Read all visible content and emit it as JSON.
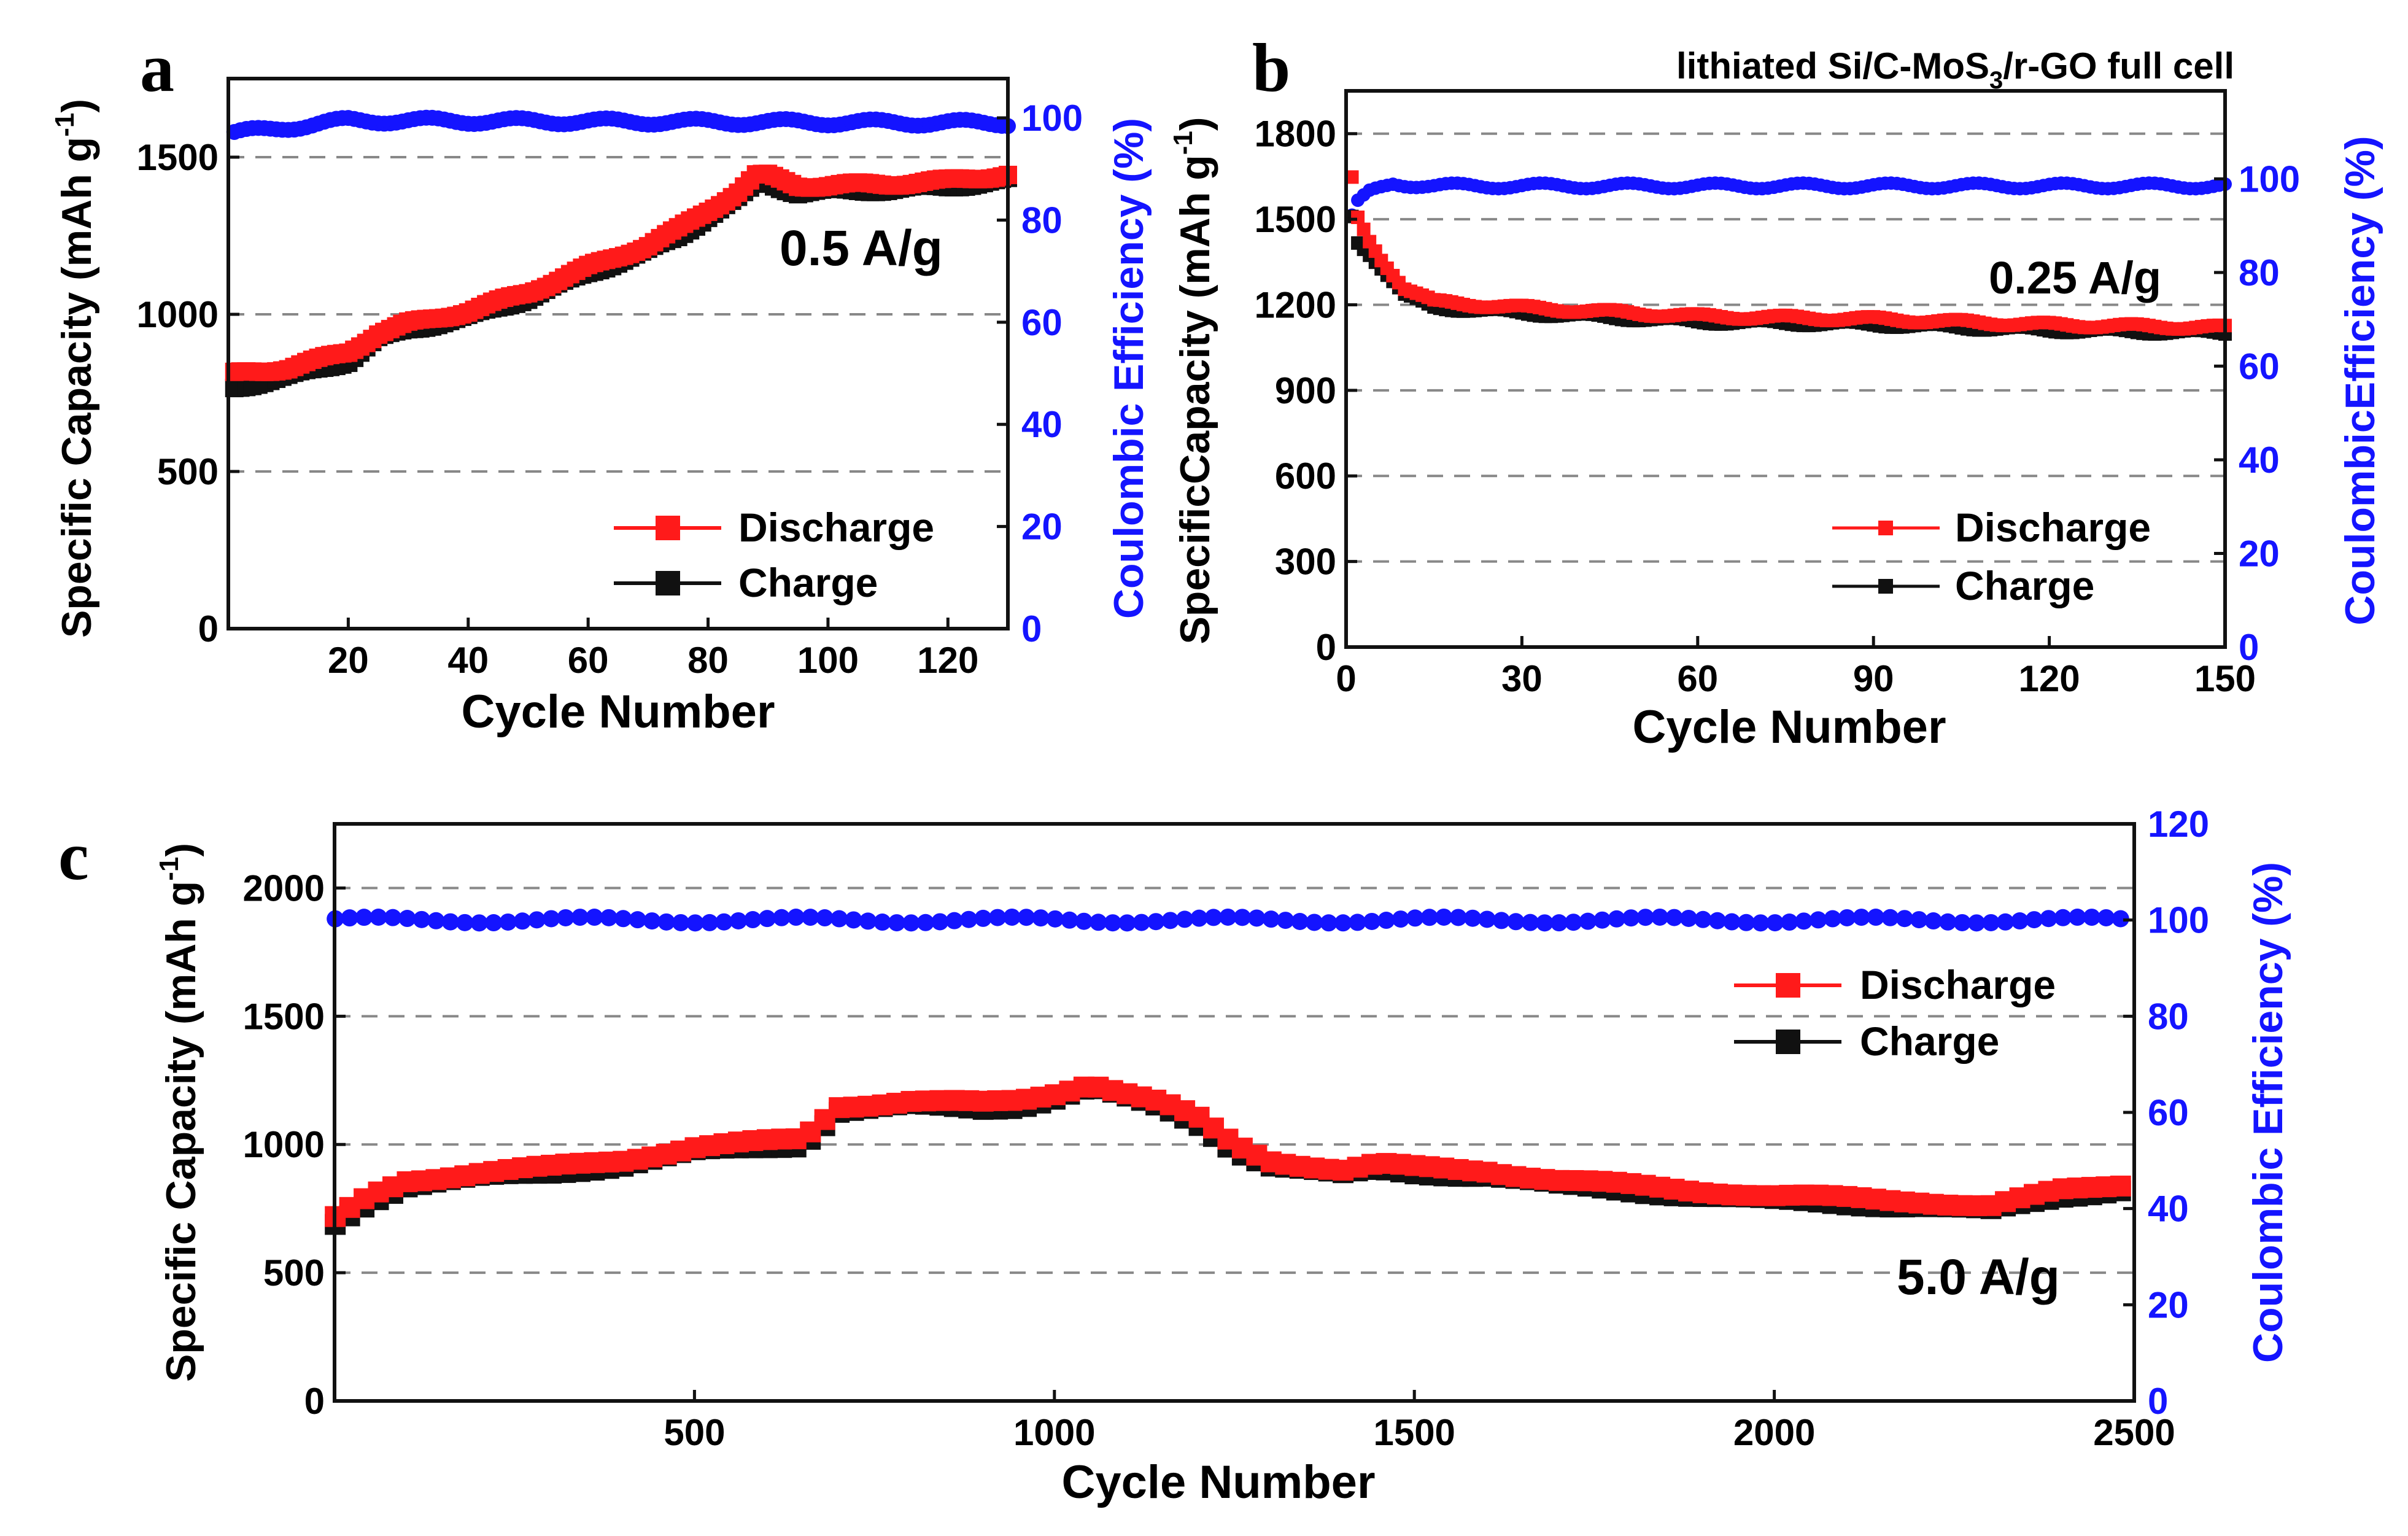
{
  "colors": {
    "discharge": "#ff1a1a",
    "charge": "#111111",
    "efficiency": "#1414ff",
    "axis": "#111111",
    "grid": "#888888"
  },
  "chart_data": [
    {
      "id": "a",
      "panel_label": "a",
      "type": "scatter",
      "title": "",
      "annotation": "0.5 A/g",
      "xlabel": "Cycle Number",
      "ylabel": "Specific Capacity (mAh g",
      "ylabel_sup": "-1",
      "ylabel_end": ")",
      "y2label": "Coulombic Efficiency (%)",
      "xlim": [
        0,
        130
      ],
      "ylim": [
        0,
        1750
      ],
      "y2lim": [
        0,
        107.7
      ],
      "xticks": [
        20,
        40,
        60,
        80,
        100,
        120
      ],
      "xtick_labels": [
        "20",
        "40",
        "60",
        "80",
        "100",
        "120"
      ],
      "yticks": [
        0,
        500,
        1000,
        1500
      ],
      "ytick_labels": [
        "0",
        "500",
        "1000",
        "1500"
      ],
      "y2ticks": [
        0,
        20,
        40,
        60,
        80,
        100
      ],
      "y2tick_labels": [
        "0",
        "20",
        "40",
        "60",
        "80",
        "100"
      ],
      "gridlines_y": [
        500,
        1000,
        1500
      ],
      "legend": {
        "position": "lower-right",
        "entries": [
          "Discharge",
          "Charge"
        ]
      },
      "series": [
        {
          "name": "Discharge",
          "axis": "left",
          "x": [
            1,
            10,
            20,
            25,
            30,
            40,
            50,
            60,
            70,
            75,
            80,
            85,
            88,
            90,
            95,
            100,
            110,
            120,
            130
          ],
          "values": [
            810,
            830,
            880,
            940,
            970,
            1010,
            1070,
            1150,
            1220,
            1270,
            1330,
            1390,
            1440,
            1440,
            1410,
            1410,
            1415,
            1425,
            1445
          ]
        },
        {
          "name": "Charge",
          "axis": "left",
          "x": [
            1,
            10,
            20,
            25,
            30,
            40,
            50,
            60,
            70,
            75,
            80,
            85,
            88,
            90,
            95,
            100,
            110,
            120,
            130
          ],
          "values": [
            775,
            810,
            860,
            930,
            960,
            1000,
            1060,
            1140,
            1210,
            1255,
            1320,
            1375,
            1420,
            1425,
            1395,
            1400,
            1405,
            1415,
            1435
          ]
        },
        {
          "name": "Coulombic Efficiency",
          "axis": "right",
          "x": [
            1,
            20,
            130
          ],
          "values": [
            97,
            99.5,
            99
          ]
        }
      ]
    },
    {
      "id": "b",
      "panel_label": "b",
      "type": "scatter",
      "title": "lithiated Si/C-MoS",
      "title_sub": "3",
      "title_end": "/r-GO full cell",
      "annotation": "0.25 A/g",
      "xlabel": "Cycle Number",
      "ylabel": "SpecificCapacity (mAh g",
      "ylabel_sup": "-1",
      "ylabel_end": ")",
      "y2label": "CoulombicEfficiency (%)",
      "xlim": [
        0,
        150
      ],
      "ylim": [
        0,
        1950
      ],
      "y2lim": [
        0,
        118.8
      ],
      "xticks": [
        0,
        30,
        60,
        90,
        120,
        150
      ],
      "xtick_labels": [
        "0",
        "30",
        "60",
        "90",
        "120",
        "150"
      ],
      "yticks": [
        0,
        300,
        600,
        900,
        1200,
        1500,
        1800
      ],
      "ytick_labels": [
        "0",
        "300",
        "600",
        "900",
        "1200",
        "1500",
        "1800"
      ],
      "y2ticks": [
        0,
        20,
        40,
        60,
        80,
        100
      ],
      "y2tick_labels": [
        "0",
        "20",
        "40",
        "60",
        "80",
        "100"
      ],
      "gridlines_y": [
        300,
        600,
        900,
        1200,
        1500,
        1800
      ],
      "legend": {
        "position": "lower-right",
        "entries": [
          "Discharge",
          "Charge"
        ]
      },
      "series": [
        {
          "name": "Discharge",
          "axis": "left",
          "x": [
            1,
            2,
            4,
            6,
            10,
            15,
            30,
            40,
            60,
            90,
            120,
            150
          ],
          "values": [
            1640,
            1500,
            1420,
            1360,
            1260,
            1210,
            1190,
            1180,
            1160,
            1150,
            1130,
            1120
          ]
        },
        {
          "name": "Charge",
          "axis": "left",
          "x": [
            1,
            2,
            4,
            6,
            10,
            15,
            30,
            40,
            60,
            90,
            120,
            150
          ],
          "values": [
            1520,
            1430,
            1390,
            1340,
            1240,
            1200,
            1180,
            1170,
            1150,
            1140,
            1120,
            1110
          ]
        },
        {
          "name": "Coulombic Efficiency",
          "axis": "right",
          "x": [
            1,
            2,
            4,
            8,
            15,
            150
          ],
          "values": [
            92,
            95,
            97,
            99,
            98.5,
            98.5
          ]
        }
      ]
    },
    {
      "id": "c",
      "panel_label": "c",
      "type": "scatter",
      "title": "",
      "annotation": "5.0 A/g",
      "xlabel": "Cycle Number",
      "ylabel": "Specific Capacity (mAh g",
      "ylabel_sup": "-1",
      "ylabel_end": ")",
      "y2label": "Coulombic Efficiency (%)",
      "xlim": [
        0,
        2500
      ],
      "ylim": [
        0,
        2250
      ],
      "y2lim": [
        0,
        120
      ],
      "xticks": [
        500,
        1000,
        1500,
        2000,
        2500
      ],
      "xtick_labels": [
        "500",
        "1000",
        "1500",
        "2000",
        "2500"
      ],
      "yticks": [
        0,
        500,
        1000,
        1500,
        2000
      ],
      "ytick_labels": [
        "0",
        "500",
        "1000",
        "1500",
        "2000"
      ],
      "y2ticks": [
        0,
        20,
        40,
        60,
        80,
        100,
        120
      ],
      "y2tick_labels": [
        "0",
        "20",
        "40",
        "60",
        "80",
        "100",
        "120"
      ],
      "gridlines_y": [
        500,
        1000,
        1500,
        2000
      ],
      "legend": {
        "position": "upper-right",
        "entries": [
          "Discharge",
          "Charge"
        ]
      },
      "series": [
        {
          "name": "Discharge",
          "axis": "left",
          "x": [
            1,
            50,
            100,
            200,
            300,
            400,
            500,
            600,
            650,
            700,
            800,
            900,
            950,
            1000,
            1050,
            1100,
            1150,
            1200,
            1250,
            1300,
            1400,
            1450,
            1500,
            1600,
            1700,
            1800,
            1900,
            2000,
            2100,
            2200,
            2300,
            2400,
            2500
          ],
          "values": [
            710,
            800,
            860,
            890,
            910,
            940,
            990,
            1010,
            1020,
            1150,
            1170,
            1160,
            1170,
            1200,
            1240,
            1200,
            1160,
            1100,
            1000,
            940,
            900,
            920,
            910,
            900,
            860,
            840,
            820,
            800,
            790,
            780,
            760,
            820,
            850
          ]
        },
        {
          "name": "Charge",
          "axis": "left",
          "x": [
            1,
            50,
            100,
            200,
            300,
            400,
            500,
            600,
            650,
            700,
            800,
            900,
            950,
            1000,
            1050,
            1100,
            1150,
            1200,
            1250,
            1300,
            1400,
            1450,
            1500,
            1600,
            1700,
            1800,
            1900,
            2000,
            2100,
            2200,
            2300,
            2400,
            2500
          ],
          "values": [
            700,
            790,
            850,
            880,
            900,
            930,
            980,
            1000,
            1010,
            1140,
            1160,
            1150,
            1160,
            1190,
            1230,
            1190,
            1150,
            1090,
            990,
            930,
            890,
            910,
            900,
            890,
            850,
            830,
            810,
            790,
            780,
            770,
            750,
            810,
            840
          ]
        },
        {
          "name": "Coulombic Efficiency",
          "axis": "right",
          "x": [
            1,
            2500
          ],
          "values": [
            100,
            100
          ]
        }
      ]
    }
  ]
}
